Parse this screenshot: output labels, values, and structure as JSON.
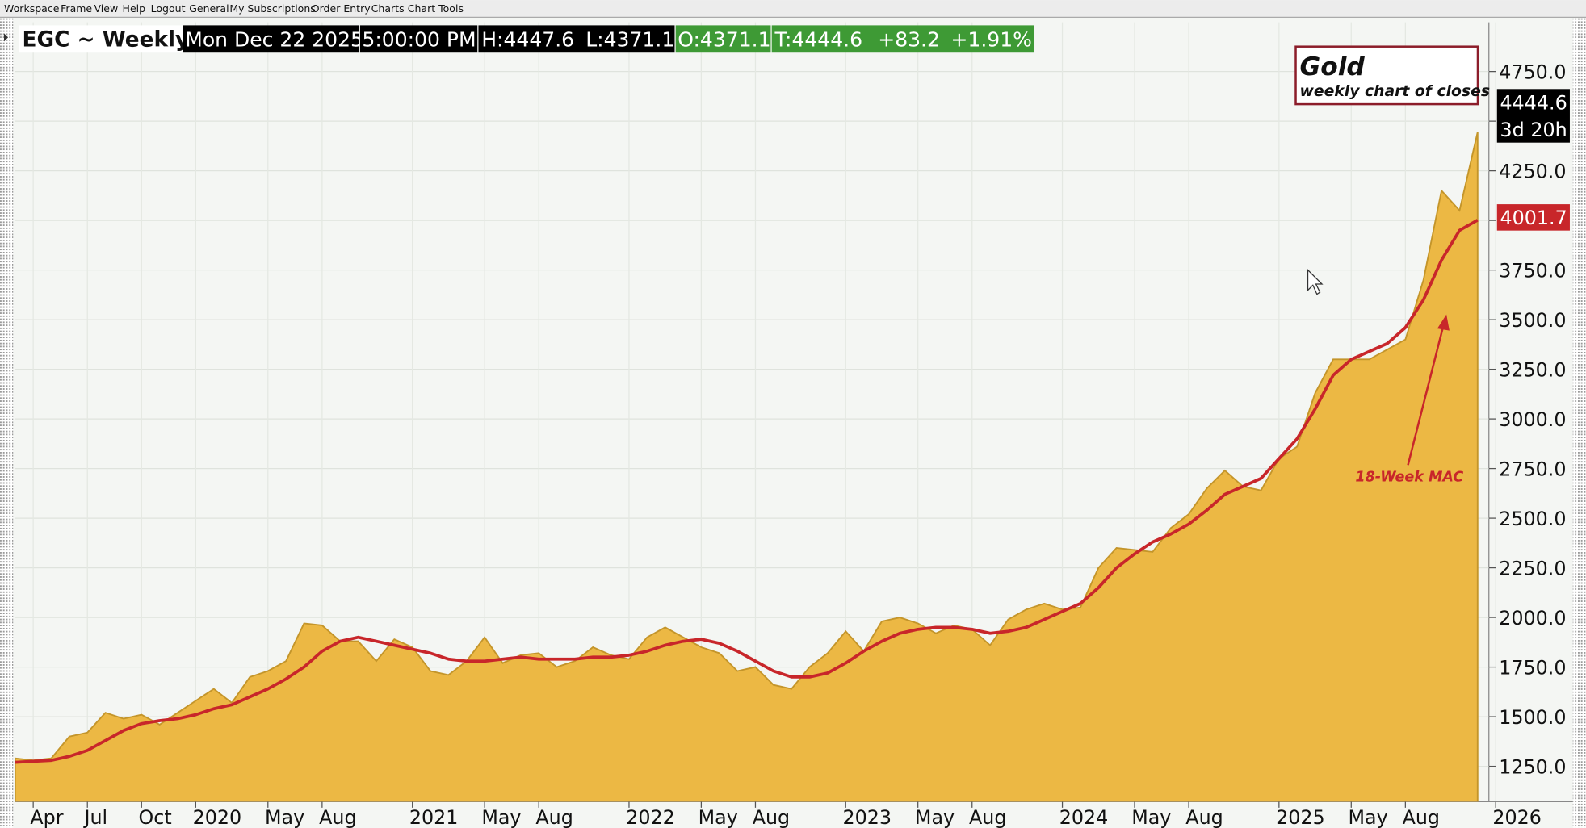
{
  "menu": [
    "Workspace",
    "Frame",
    "View",
    "Help",
    "Logout",
    "General",
    "My Subscriptions",
    "Order Entry",
    "Charts",
    "Chart Tools"
  ],
  "header": {
    "symbol": "EGC ~ Weekly",
    "date": "Mon Dec 22 2025",
    "time": "5:00:00 PM",
    "high": "H:4447.6",
    "low": "L:4371.1",
    "open": "O:4371.1",
    "last": "T:4444.6",
    "change": "+83.2",
    "change_pct": "+1.91%",
    "countdown": "3d 20h"
  },
  "chart_data": {
    "type": "area",
    "subtitle": "weekly chart of closes",
    "categories": [
      null,
      "Apr",
      null,
      null,
      "Jul",
      null,
      null,
      "Oct",
      null,
      null,
      "2020",
      null,
      null,
      null,
      "May",
      null,
      null,
      "Aug",
      null,
      null,
      null,
      null,
      "2021",
      null,
      null,
      null,
      "May",
      null,
      null,
      "Aug",
      null,
      null,
      null,
      null,
      "2022",
      null,
      null,
      null,
      "May",
      null,
      null,
      "Aug",
      null,
      null,
      null,
      null,
      "2023",
      null,
      null,
      null,
      "May",
      null,
      null,
      "Aug",
      null,
      null,
      null,
      null,
      "2024",
      null,
      null,
      null,
      "May",
      null,
      null,
      "Aug",
      null,
      null,
      null,
      null,
      "2025",
      null,
      null,
      null,
      "May",
      null,
      null,
      "Aug",
      null,
      null,
      null,
      null,
      "2026"
    ],
    "series": [
      {
        "name": "Gold",
        "color": "#ecb844",
        "values": [
          1290,
          1280,
          1290,
          1400,
          1420,
          1520,
          1490,
          1510,
          1460,
          1520,
          1580,
          1640,
          1570,
          1700,
          1730,
          1780,
          1970,
          1960,
          1880,
          1880,
          1780,
          1890,
          1850,
          1730,
          1710,
          1780,
          1900,
          1770,
          1810,
          1820,
          1750,
          1780,
          1850,
          1810,
          1790,
          1900,
          1950,
          1900,
          1850,
          1820,
          1730,
          1750,
          1660,
          1640,
          1750,
          1820,
          1930,
          1830,
          1980,
          2000,
          1970,
          1920,
          1960,
          1940,
          1860,
          1990,
          2040,
          2070,
          2040,
          2050,
          2250,
          2350,
          2340,
          2330,
          2450,
          2520,
          2650,
          2740,
          2660,
          2640,
          2800,
          2860,
          3130,
          3300,
          3300,
          3300,
          3350,
          3400,
          3700,
          4150,
          4050,
          4444.6,
          null
        ]
      },
      {
        "name": "18-Week MAC",
        "color": "#c8262a",
        "values": [
          1270,
          1275,
          1280,
          1300,
          1330,
          1380,
          1430,
          1465,
          1480,
          1490,
          1510,
          1540,
          1560,
          1600,
          1640,
          1690,
          1750,
          1830,
          1880,
          1900,
          1880,
          1860,
          1840,
          1820,
          1790,
          1780,
          1780,
          1790,
          1800,
          1790,
          1790,
          1790,
          1800,
          1800,
          1810,
          1830,
          1860,
          1880,
          1890,
          1870,
          1830,
          1780,
          1730,
          1700,
          1700,
          1720,
          1770,
          1830,
          1880,
          1920,
          1940,
          1950,
          1950,
          1940,
          1920,
          1930,
          1950,
          1990,
          2030,
          2070,
          2150,
          2250,
          2320,
          2380,
          2420,
          2470,
          2540,
          2620,
          2660,
          2700,
          2800,
          2900,
          3050,
          3220,
          3300,
          3340,
          3380,
          3460,
          3600,
          3800,
          3950,
          4001.7,
          null
        ]
      }
    ],
    "ylim": [
      1072,
      4998
    ],
    "yticks": [
      {
        "value": 1250,
        "label": "1250.0"
      },
      {
        "value": 1500,
        "label": "1500.0"
      },
      {
        "value": 1750,
        "label": "1750.0"
      },
      {
        "value": 2000,
        "label": "2000.0"
      },
      {
        "value": 2250,
        "label": "2250.0"
      },
      {
        "value": 2500,
        "label": "2500.0"
      },
      {
        "value": 2750,
        "label": "2750.0"
      },
      {
        "value": 3000,
        "label": "3000.0"
      },
      {
        "value": 3250,
        "label": "3250.0"
      },
      {
        "value": 3500,
        "label": "3500.0"
      },
      {
        "value": 3750,
        "label": "3750.0"
      },
      {
        "value": 4000,
        "label": "4000.0"
      },
      {
        "value": 4250,
        "label": "4250.0"
      },
      {
        "value": 4500,
        "label": "4500.0"
      },
      {
        "value": 4750,
        "label": "4750.0"
      }
    ],
    "grid": true
  }
}
